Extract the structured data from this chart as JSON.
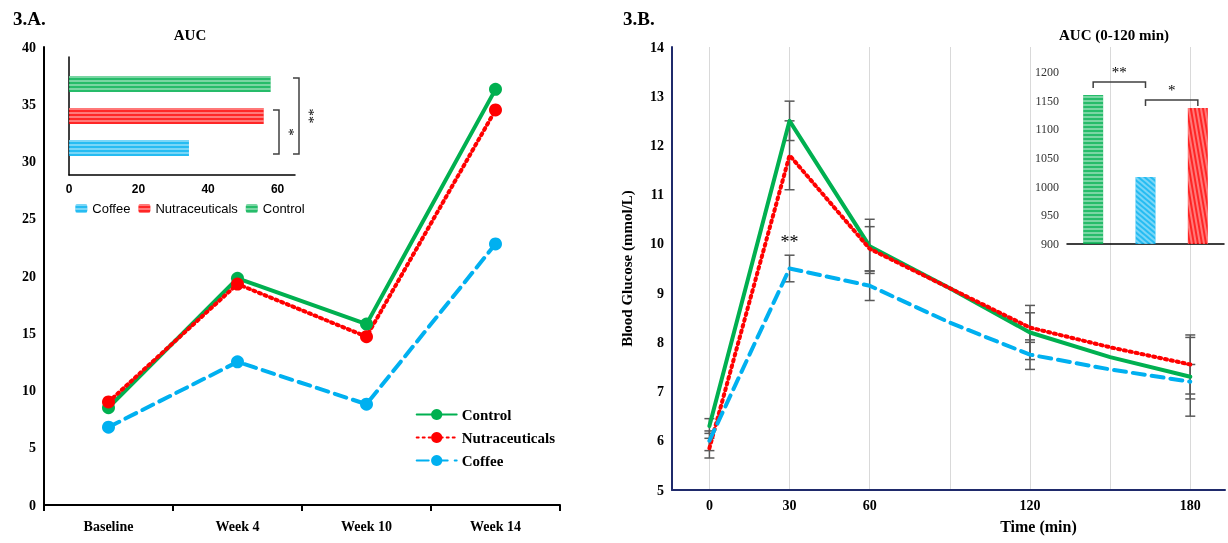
{
  "chart_data": [
    {
      "type": "line",
      "title": "3.A.",
      "categories": [
        "Baseline",
        "Week 4",
        "Week 10",
        "Week 14"
      ],
      "ylim": [
        0,
        40
      ],
      "yticks": [
        0,
        5,
        10,
        15,
        20,
        25,
        30,
        35,
        40
      ],
      "marker": "circle",
      "legend": "bottom right",
      "grid": false,
      "series": [
        {
          "name": "Control",
          "color": "#00b050",
          "line_style": "solid",
          "values": [
            8.5,
            19.8,
            15.8,
            36.3
          ]
        },
        {
          "name": "Nutraceuticals",
          "color": "#ff0000",
          "line_style": "dotted",
          "values": [
            9.0,
            19.3,
            14.7,
            34.5
          ]
        },
        {
          "name": "Coffee",
          "color": "#00b0f0",
          "line_style": "dashed",
          "values": [
            6.8,
            12.5,
            8.8,
            22.8
          ]
        }
      ]
    },
    {
      "type": "bar",
      "title": "AUC",
      "orientation": "horizontal",
      "categories": [
        null
      ],
      "xlim": [
        0,
        65
      ],
      "xticks": [
        0,
        20,
        40,
        60
      ],
      "legend": "bottom",
      "grid": false,
      "annotations": [
        "*",
        "**"
      ],
      "series": [
        {
          "name": "Coffee",
          "color": "#00b0f0",
          "values": [
            34.5
          ]
        },
        {
          "name": "Nutraceuticals",
          "color": "#ff0000",
          "values": [
            56
          ]
        },
        {
          "name": "Control",
          "color": "#00b050",
          "values": [
            58
          ]
        }
      ]
    },
    {
      "type": "line",
      "title": "3.B.",
      "xlabel": "Time (min)",
      "ylabel": "Blood Glucose (mmol/L)",
      "x": [
        0,
        30,
        60,
        90,
        120,
        150,
        180
      ],
      "xlim": [
        -14,
        193
      ],
      "xticks": [
        0,
        30,
        60,
        {
          "value": 90,
          "label": null
        },
        120,
        {
          "value": 150,
          "label": null
        },
        180
      ],
      "ylim": [
        5,
        14
      ],
      "yticks": [
        5,
        6,
        7,
        8,
        9,
        10,
        11,
        12,
        13,
        14
      ],
      "marker": "none",
      "grid": "x",
      "annotations": [
        "**"
      ],
      "series": [
        {
          "color": "#00b050",
          "line_style": "solid",
          "values": [
            6.3,
            12.5,
            9.95,
            9.1,
            8.2,
            7.7,
            7.3
          ],
          "errors": [
            0.15,
            0.4,
            0.55,
            null,
            0.55,
            null,
            0.8
          ]
        },
        {
          "color": "#ff0000",
          "line_style": "dotted",
          "values": [
            5.85,
            11.8,
            9.9,
            9.1,
            8.3,
            7.9,
            7.55
          ],
          "errors": [
            0.2,
            0.7,
            0.45,
            null,
            0.3,
            null,
            0.6
          ]
        },
        {
          "color": "#00b0f0",
          "line_style": "dashed",
          "values": [
            6.0,
            9.5,
            9.15,
            8.4,
            7.75,
            7.45,
            7.2
          ],
          "errors": [
            0.2,
            0.27,
            0.3,
            null,
            0.3,
            null,
            0.35
          ]
        }
      ]
    },
    {
      "type": "bar",
      "title": "AUC (0-120 min)",
      "categories": [
        null,
        null,
        null
      ],
      "values": [
        1160,
        1017,
        1137
      ],
      "colors": [
        "#00b050",
        "#00b0f0",
        "#ff0000"
      ],
      "ylim": [
        900,
        1200
      ],
      "yticks": [
        900,
        950,
        1000,
        1050,
        1100,
        1150,
        1200
      ],
      "grid": false,
      "annotations": [
        "**",
        "*"
      ]
    }
  ]
}
